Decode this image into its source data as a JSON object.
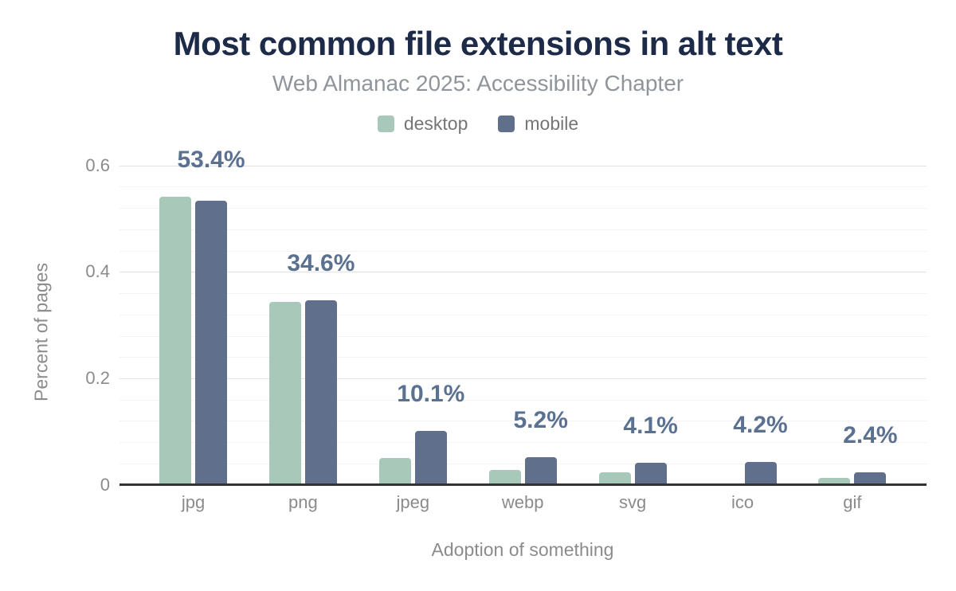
{
  "chart_data": {
    "type": "bar",
    "title": "Most common file extensions in alt text",
    "subtitle": "Web Almanac 2025: Accessibility Chapter",
    "categories": [
      "jpg",
      "png",
      "jpeg",
      "webp",
      "svg",
      "ico",
      "gif"
    ],
    "series": [
      {
        "name": "desktop",
        "color": "#a8c8b9",
        "values": [
          0.541,
          0.343,
          0.05,
          0.028,
          0.024,
          0,
          0.013
        ]
      },
      {
        "name": "mobile",
        "color": "#60708c",
        "values": [
          0.534,
          0.346,
          0.101,
          0.052,
          0.041,
          0.042,
          0.024
        ]
      }
    ],
    "bar_labels": [
      "53.4%",
      "34.6%",
      "10.1%",
      "5.2%",
      "4.1%",
      "4.2%",
      "2.4%"
    ],
    "xlabel": "Adoption of something",
    "ylabel": "Percent of pages",
    "yticks": [
      0,
      0.2,
      0.4,
      0.6
    ],
    "ylim": [
      0,
      0.6
    ],
    "grid": {
      "major_step": 0.2,
      "minor_step": 0.04
    },
    "legend_position": "top"
  },
  "colors": {
    "title": "#1d2b49",
    "subtitle": "#8f959b",
    "bar_label": "#5a7191",
    "axis_text": "#8b8b8b",
    "legend_text": "#757575",
    "axis_line": "#333333",
    "grid_major": "#e2e2e2",
    "grid_minor": "#f3f3f3",
    "background": "#ffffff"
  }
}
